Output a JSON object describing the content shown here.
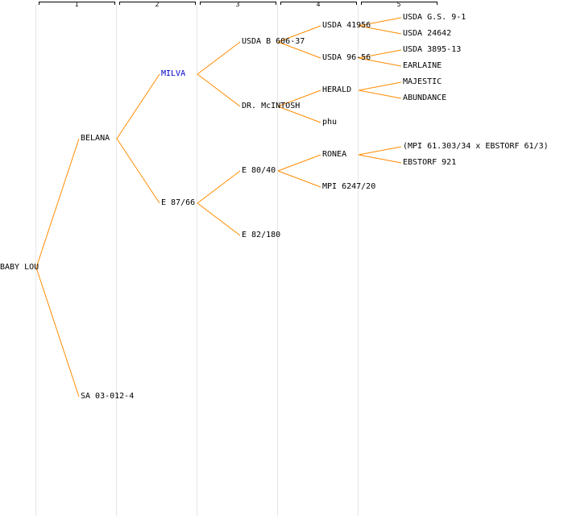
{
  "colors": {
    "background": "#ffffff",
    "line": "#ff8c00",
    "text": "#000000",
    "highlight": "#0000cc",
    "gridline": "#e6e6e6",
    "header": "#000000"
  },
  "generations": [
    "1",
    "2",
    "3",
    "4",
    "5"
  ],
  "nodes": [
    {
      "id": "baby-lou",
      "label": "BABY LOU"
    },
    {
      "id": "belana",
      "label": "BELANA",
      "parent": "baby-lou"
    },
    {
      "id": "sa-03-012-4",
      "label": "SA 03-012-4",
      "parent": "baby-lou"
    },
    {
      "id": "milva",
      "label": "MILVA",
      "parent": "belana",
      "highlight": true
    },
    {
      "id": "e-87-66",
      "label": "E 87/66",
      "parent": "belana"
    },
    {
      "id": "usda-b-606-37",
      "label": "USDA B 606-37",
      "parent": "milva"
    },
    {
      "id": "dr-mcintosh",
      "label": "DR. McINTOSH",
      "parent": "milva"
    },
    {
      "id": "e-80-40",
      "label": "E 80/40",
      "parent": "e-87-66"
    },
    {
      "id": "e-82-180",
      "label": "E 82/180",
      "parent": "e-87-66"
    },
    {
      "id": "usda-41956",
      "label": "USDA 41956",
      "parent": "usda-b-606-37"
    },
    {
      "id": "usda-96-56",
      "label": "USDA 96-56",
      "parent": "usda-b-606-37"
    },
    {
      "id": "herald",
      "label": "HERALD",
      "parent": "dr-mcintosh"
    },
    {
      "id": "phu",
      "label": "phu",
      "parent": "dr-mcintosh"
    },
    {
      "id": "ronea",
      "label": "RONEA",
      "parent": "e-80-40"
    },
    {
      "id": "mpi-6247-20",
      "label": "MPI 6247/20",
      "parent": "e-80-40"
    },
    {
      "id": "usda-gs-9-1",
      "label": "USDA G.S. 9-1",
      "parent": "usda-41956"
    },
    {
      "id": "usda-24642",
      "label": "USDA 24642",
      "parent": "usda-41956"
    },
    {
      "id": "usda-3895-13",
      "label": "USDA 3895-13",
      "parent": "usda-96-56"
    },
    {
      "id": "earlaine",
      "label": "EARLAINE",
      "parent": "usda-96-56"
    },
    {
      "id": "majestic",
      "label": "MAJESTIC",
      "parent": "herald"
    },
    {
      "id": "abundance",
      "label": "ABUNDANCE",
      "parent": "herald"
    },
    {
      "id": "mpi-ebstorf-cross",
      "label": "(MPI 61.303/34 x EBSTORF 61/3)",
      "parent": "ronea"
    },
    {
      "id": "ebstorf-921",
      "label": "EBSTORF 921",
      "parent": "ronea"
    }
  ]
}
